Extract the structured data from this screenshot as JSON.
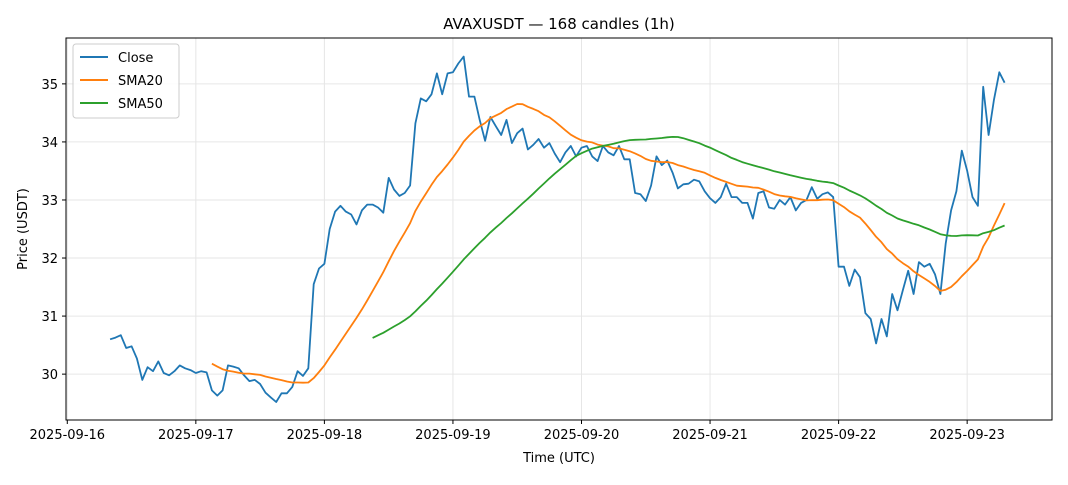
{
  "chart_data": {
    "type": "line",
    "title": "AVAXUSDT — 168 candles (1h)",
    "xlabel": "Time (UTC)",
    "ylabel": "Price (USDT)",
    "start": "2025-09-16T08:00",
    "interval_hours": 1,
    "ylim": [
      29.21,
      35.79
    ],
    "xlim_days_from_start_tick": [
      -0.01,
      7.66
    ],
    "grid": true,
    "legend_position": "top-left",
    "x_ticks": [
      "2025-09-16",
      "2025-09-17",
      "2025-09-18",
      "2025-09-19",
      "2025-09-20",
      "2025-09-21",
      "2025-09-22",
      "2025-09-23"
    ],
    "y_ticks": [
      "30",
      "31",
      "32",
      "33",
      "34",
      "35"
    ],
    "series": [
      {
        "name": "Close",
        "color": "#1f77b4",
        "values": [
          30.6,
          30.63,
          30.67,
          30.45,
          30.48,
          30.27,
          29.9,
          30.12,
          30.05,
          30.22,
          30.02,
          29.98,
          30.05,
          30.15,
          30.1,
          30.07,
          30.02,
          30.05,
          30.03,
          29.72,
          29.63,
          29.72,
          30.15,
          30.13,
          30.1,
          29.98,
          29.88,
          29.9,
          29.83,
          29.68,
          29.6,
          29.52,
          29.67,
          29.67,
          29.78,
          30.05,
          29.97,
          30.1,
          31.55,
          31.82,
          31.9,
          32.5,
          32.8,
          32.9,
          32.8,
          32.75,
          32.58,
          32.82,
          32.92,
          32.92,
          32.87,
          32.78,
          33.38,
          33.18,
          33.07,
          33.12,
          33.25,
          34.32,
          34.75,
          34.7,
          34.82,
          35.18,
          34.82,
          35.18,
          35.2,
          35.35,
          35.47,
          34.78,
          34.78,
          34.38,
          34.02,
          34.43,
          34.27,
          34.12,
          34.38,
          33.98,
          34.15,
          34.23,
          33.87,
          33.95,
          34.05,
          33.9,
          33.98,
          33.8,
          33.65,
          33.82,
          33.93,
          33.75,
          33.9,
          33.93,
          33.75,
          33.67,
          33.93,
          33.82,
          33.77,
          33.93,
          33.7,
          33.7,
          33.12,
          33.1,
          32.98,
          33.25,
          33.75,
          33.6,
          33.68,
          33.47,
          33.2,
          33.27,
          33.28,
          33.35,
          33.32,
          33.15,
          33.03,
          32.95,
          33.05,
          33.28,
          33.05,
          33.05,
          32.95,
          32.95,
          32.68,
          33.12,
          33.15,
          32.87,
          32.85,
          33.0,
          32.92,
          33.05,
          32.82,
          32.95,
          33.0,
          33.22,
          33.02,
          33.1,
          33.13,
          33.05,
          31.85,
          31.85,
          31.52,
          31.8,
          31.67,
          31.05,
          30.95,
          30.53,
          30.95,
          30.65,
          31.38,
          31.1,
          31.45,
          31.78,
          31.38,
          31.93,
          31.85,
          31.9,
          31.72,
          31.38,
          32.25,
          32.82,
          33.15,
          33.85,
          33.5,
          33.05,
          32.9,
          34.95,
          34.12,
          34.72,
          35.2,
          35.02
        ]
      },
      {
        "name": "SMA20",
        "color": "#ff7f0e",
        "window": 20
      },
      {
        "name": "SMA50",
        "color": "#2ca02c",
        "window": 50
      }
    ]
  }
}
